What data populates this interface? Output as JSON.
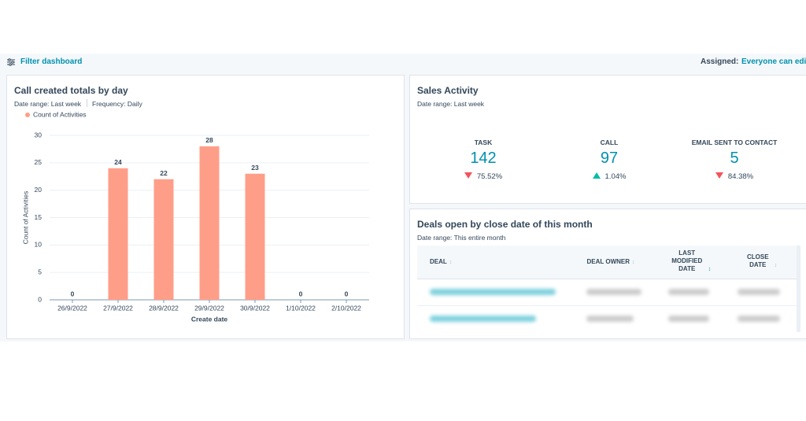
{
  "toolbar": {
    "filter": "Filter dashboard",
    "assigned_label": "Assigned:",
    "assigned_value": "Everyone can edi"
  },
  "chart_data": {
    "type": "bar",
    "title": "Call created totals by day",
    "date_range": "Date range: Last week",
    "frequency": "Frequency: Daily",
    "categories": [
      "26/9/2022",
      "27/9/2022",
      "28/9/2022",
      "29/9/2022",
      "30/9/2022",
      "1/10/2022",
      "2/10/2022"
    ],
    "series": [
      {
        "name": "Count of Activities",
        "color": "#ff9e88",
        "values": [
          0,
          24,
          22,
          28,
          23,
          0,
          0
        ]
      }
    ],
    "ylim": [
      0,
      30
    ],
    "yticks": [
      0,
      5,
      10,
      15,
      20,
      25,
      30
    ],
    "y_label": "Count of Activities",
    "x_label": "Create date",
    "grid": true
  },
  "sales_activity": {
    "title": "Sales Activity",
    "date_range": "Date range: Last week",
    "metrics": [
      {
        "label": "TASK",
        "value": "142",
        "change": "75.52%",
        "direction": "down"
      },
      {
        "label": "CALL",
        "value": "97",
        "change": "1.04%",
        "direction": "up"
      },
      {
        "label": "EMAIL SENT TO CONTACT",
        "value": "5",
        "change": "84.38%",
        "direction": "down"
      }
    ]
  },
  "deals": {
    "title": "Deals open by close date of this month",
    "date_range": "Date range: This entire month",
    "columns": [
      "DEAL",
      "DEAL OWNER",
      "LAST MODIFIED DATE",
      "CLOSE DATE"
    ]
  }
}
